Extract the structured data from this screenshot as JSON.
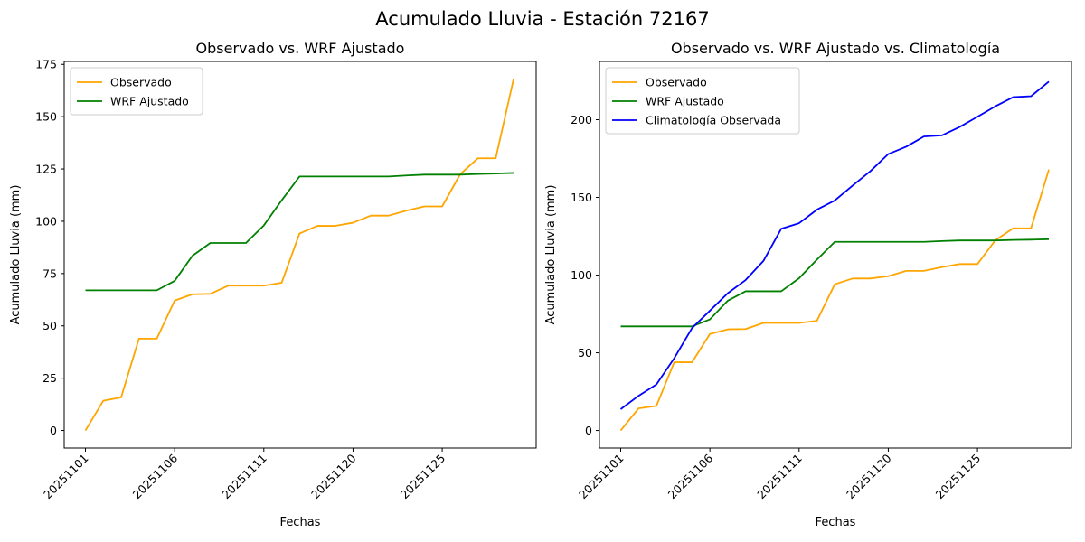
{
  "figure": {
    "title": "Acumulado Lluvia - Estación 72167"
  },
  "chart_data": [
    {
      "type": "line",
      "title": "Observado vs. WRF Ajustado",
      "xlabel": "Fechas",
      "ylabel": "Acumulado Lluvia (mm)",
      "x": [
        "20251101",
        "20251102",
        "20251103",
        "20251104",
        "20251105",
        "20251106",
        "20251107",
        "20251108",
        "20251109",
        "20251110",
        "20251111",
        "20251112",
        "20251113",
        "20251114",
        "20251119",
        "20251120",
        "20251121",
        "20251122",
        "20251123",
        "20251124",
        "20251125",
        "20251126",
        "20251127",
        "20251128",
        "20251129"
      ],
      "xticks": [
        "20251101",
        "20251106",
        "20251111",
        "20251120",
        "20251125"
      ],
      "yticks": [
        0,
        25,
        50,
        75,
        100,
        125,
        150,
        175
      ],
      "ylim": [
        -8.4,
        176.4
      ],
      "grid": false,
      "legend_position": "upper-left",
      "series": [
        {
          "name": "Observado",
          "color": "#ffa500",
          "values": [
            0,
            14.2,
            15.8,
            43.9,
            43.9,
            62.1,
            65.1,
            65.3,
            69.2,
            69.2,
            69.2,
            70.6,
            94.1,
            97.8,
            97.8,
            99.3,
            102.7,
            102.7,
            105.1,
            107.1,
            107.1,
            122.4,
            130.1,
            130.1,
            167.9
          ]
        },
        {
          "name": "WRF Ajustado",
          "color": "#008000",
          "values": [
            67.0,
            67.0,
            67.0,
            67.0,
            67.0,
            71.5,
            83.5,
            89.6,
            89.6,
            89.6,
            98.0,
            110.0,
            121.4,
            121.4,
            121.4,
            121.4,
            121.4,
            121.4,
            121.9,
            122.3,
            122.3,
            122.3,
            122.6,
            122.8,
            123.1
          ]
        }
      ]
    },
    {
      "type": "line",
      "title": "Observado vs. WRF Ajustado vs. Climatología",
      "xlabel": "Fechas",
      "ylabel": "Acumulado Lluvia (mm)",
      "x": [
        "20251101",
        "20251102",
        "20251103",
        "20251104",
        "20251105",
        "20251106",
        "20251107",
        "20251108",
        "20251109",
        "20251110",
        "20251111",
        "20251112",
        "20251113",
        "20251114",
        "20251119",
        "20251120",
        "20251121",
        "20251122",
        "20251123",
        "20251124",
        "20251125",
        "20251126",
        "20251127",
        "20251128",
        "20251129"
      ],
      "xticks": [
        "20251101",
        "20251106",
        "20251111",
        "20251120",
        "20251125"
      ],
      "yticks": [
        0,
        50,
        100,
        150,
        200
      ],
      "ylim": [
        -11.3,
        237.5
      ],
      "grid": false,
      "legend_position": "upper-left",
      "series": [
        {
          "name": "Observado",
          "color": "#ffa500",
          "values": [
            0,
            14.2,
            15.8,
            43.9,
            43.9,
            62.1,
            65.1,
            65.3,
            69.2,
            69.2,
            69.2,
            70.6,
            94.1,
            97.8,
            97.8,
            99.3,
            102.7,
            102.7,
            105.1,
            107.1,
            107.1,
            122.4,
            130.1,
            130.1,
            167.9
          ]
        },
        {
          "name": "WRF Ajustado",
          "color": "#008000",
          "values": [
            67.0,
            67.0,
            67.0,
            67.0,
            67.0,
            71.5,
            83.5,
            89.6,
            89.6,
            89.6,
            98.0,
            110.0,
            121.4,
            121.4,
            121.4,
            121.4,
            121.4,
            121.4,
            121.9,
            122.3,
            122.3,
            122.3,
            122.6,
            122.8,
            123.1
          ]
        },
        {
          "name": "Climatología Observada",
          "color": "#0000ff",
          "values": [
            13.7,
            22.3,
            29.6,
            46.5,
            65.9,
            77.1,
            88.3,
            96.8,
            109.1,
            129.8,
            133.4,
            142.1,
            148.0,
            157.6,
            166.9,
            177.9,
            182.6,
            189.2,
            189.9,
            195.3,
            201.9,
            208.6,
            214.5,
            215.1,
            224.5
          ]
        }
      ]
    }
  ]
}
